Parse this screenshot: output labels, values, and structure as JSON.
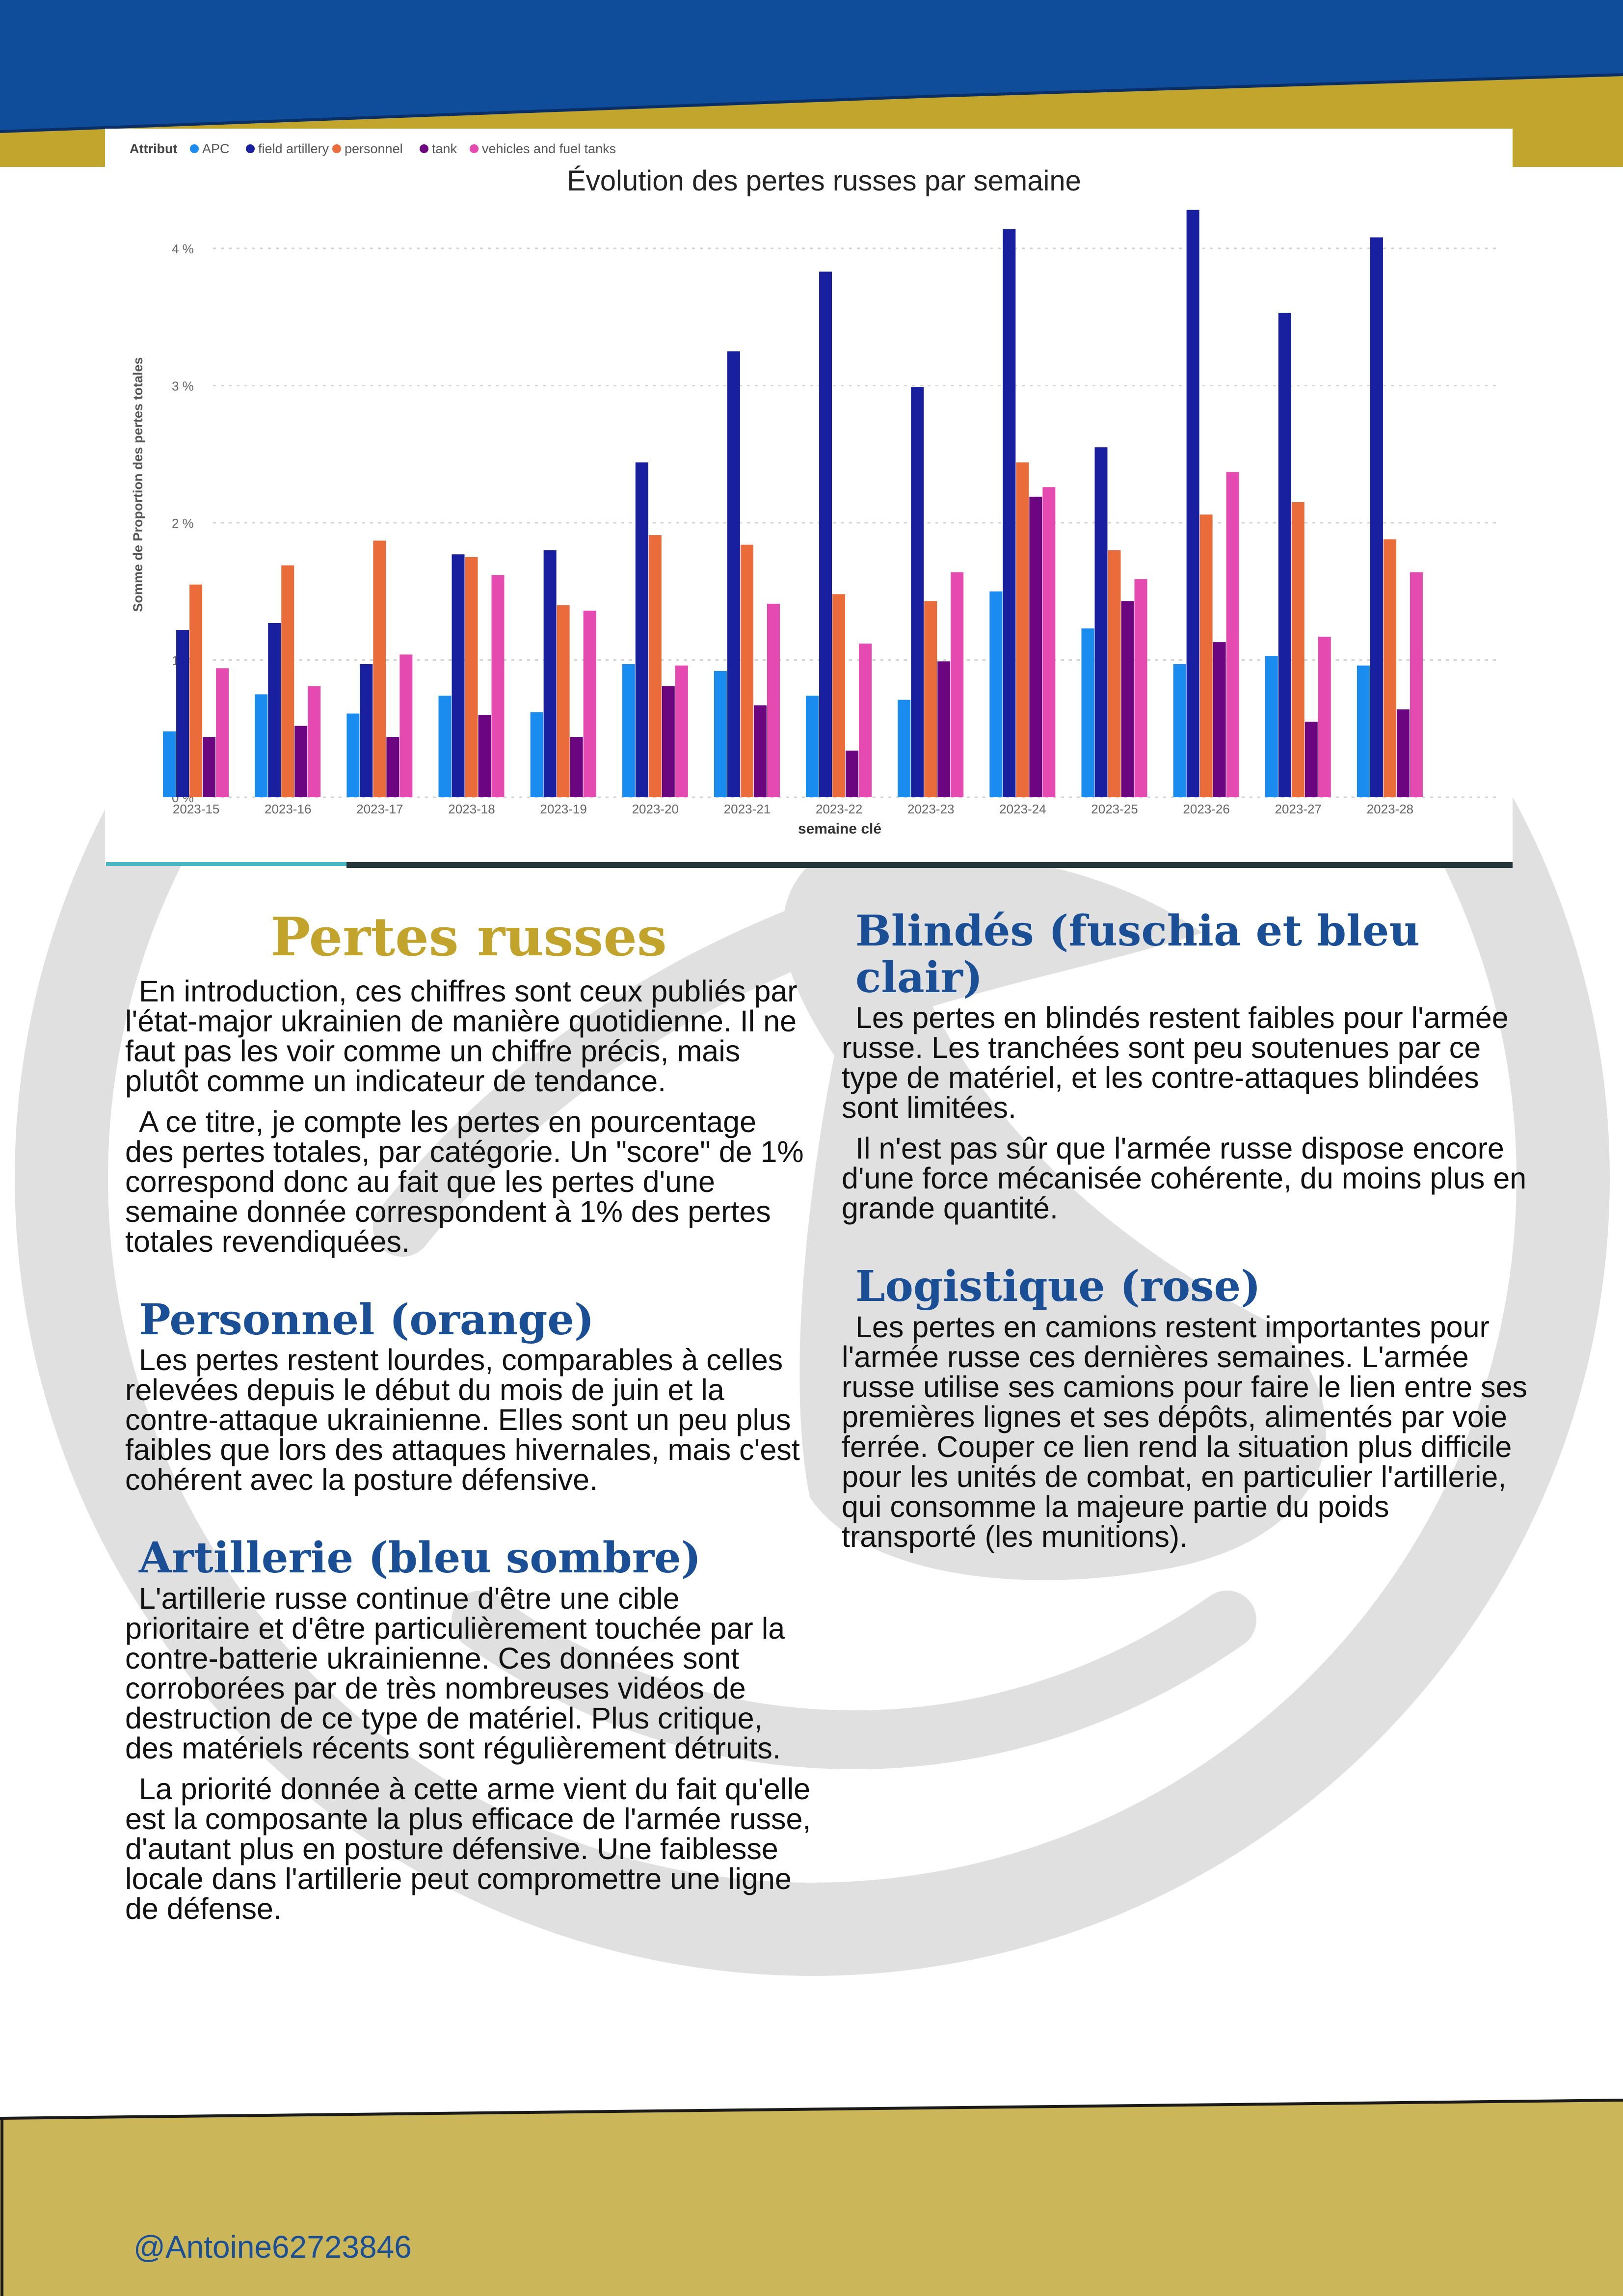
{
  "colors": {
    "header_blue": "#0f4c9a",
    "gold": "#c1a52d",
    "footer_gold": "#ccb65a",
    "watermark_gray": "#e0e0e0",
    "title_gold": "#c2a32c",
    "heading_blue": "#1a4f96"
  },
  "chart_data": {
    "type": "bar",
    "title": "Évolution des pertes russes par semaine",
    "xlabel": "semaine clé",
    "ylabel": "Somme de Proportion des pertes totales",
    "legend_title": "Attribut",
    "legend_position": "top-left",
    "grid": true,
    "ylim": [
      0,
      4.3
    ],
    "y_ticks": [
      0,
      1,
      2,
      3,
      4
    ],
    "y_tick_labels": [
      "0 %",
      "1 %",
      "2 %",
      "3 %",
      "4 %"
    ],
    "categories": [
      "2023-15",
      "2023-16",
      "2023-17",
      "2023-18",
      "2023-19",
      "2023-20",
      "2023-21",
      "2023-22",
      "2023-23",
      "2023-24",
      "2023-25",
      "2023-26",
      "2023-27",
      "2023-28"
    ],
    "series": [
      {
        "name": "APC",
        "color": "#1a8cf0",
        "values": [
          0.48,
          0.75,
          0.61,
          0.74,
          0.62,
          0.97,
          0.92,
          0.74,
          0.71,
          1.5,
          1.23,
          0.97,
          1.03,
          0.96
        ]
      },
      {
        "name": "field artillery",
        "color": "#1820a0",
        "values": [
          1.22,
          1.27,
          0.97,
          1.77,
          1.8,
          2.44,
          3.25,
          3.83,
          2.99,
          4.14,
          2.55,
          4.28,
          3.53,
          4.08
        ]
      },
      {
        "name": "personnel",
        "color": "#ea6c3a",
        "values": [
          1.55,
          1.69,
          1.87,
          1.75,
          1.4,
          1.91,
          1.84,
          1.48,
          1.43,
          2.44,
          1.8,
          2.06,
          2.15,
          1.88
        ]
      },
      {
        "name": "tank",
        "color": "#6b0580",
        "values": [
          0.44,
          0.52,
          0.44,
          0.6,
          0.44,
          0.81,
          0.67,
          0.34,
          0.99,
          2.19,
          1.43,
          1.13,
          0.55,
          0.64
        ]
      },
      {
        "name": "vehicles and fuel tanks",
        "color": "#e54ab0",
        "values": [
          0.94,
          0.81,
          1.04,
          1.62,
          1.36,
          0.96,
          1.41,
          1.12,
          1.64,
          2.26,
          1.59,
          2.37,
          1.17,
          1.64
        ]
      }
    ]
  },
  "left": {
    "title": "Pertes russes",
    "intro_p1": "En introduction, ces chiffres sont ceux publiés par l'état-major ukrainien de manière quotidienne. Il ne faut pas les voir comme un chiffre précis, mais plutôt comme un indicateur de tendance.",
    "intro_p2": "A ce titre, je compte les pertes en pourcentage des pertes totales, par catégorie. Un \"score\" de 1% correspond donc au fait que les pertes d'une semaine donnée correspondent à 1% des pertes totales revendiquées.",
    "personnel_heading": "Personnel (orange)",
    "personnel_p1": "Les pertes restent lourdes, comparables à celles relevées depuis le début du mois de juin et la contre-attaque ukrainienne. Elles sont un peu plus faibles que lors des attaques hivernales, mais c'est cohérent avec la posture défensive.",
    "artillery_heading": "Artillerie (bleu sombre)",
    "artillery_p1": "L'artillerie russe continue d'être une cible prioritaire et d'être particulièrement touchée par la contre-batterie ukrainienne. Ces données sont corroborées par de très nombreuses vidéos de destruction de ce type de matériel. Plus critique, des matériels récents sont régulièrement détruits.",
    "artillery_p2": "La priorité donnée à cette arme vient du fait qu'elle est la composante la plus efficace de l'armée russe, d'autant plus en posture défensive. Une faiblesse locale dans l'artillerie peut compromettre une ligne de défense."
  },
  "right": {
    "armor_heading": "Blindés (fuschia et bleu clair)",
    "armor_p1": "Les pertes en blindés restent faibles pour l'armée russe. Les tranchées sont peu soutenues par ce type de matériel, et les contre-attaques blindées sont limitées.",
    "armor_p2": "Il n'est pas sûr que l'armée russe dispose encore d'une force mécanisée cohérente, du moins plus en grande quantité.",
    "logistics_heading": "Logistique (rose)",
    "logistics_p1": "Les pertes en camions restent importantes pour l'armée russe ces dernières semaines. L'armée russe utilise ses camions pour faire le lien entre ses premières lignes et ses dépôts, alimentés par voie ferrée. Couper ce lien rend la situation plus difficile pour les unités de combat, en particulier l'artillerie, qui consomme la majeure partie du poids transporté (les munitions)."
  },
  "footer": {
    "handle": "@Antoine62723846"
  }
}
